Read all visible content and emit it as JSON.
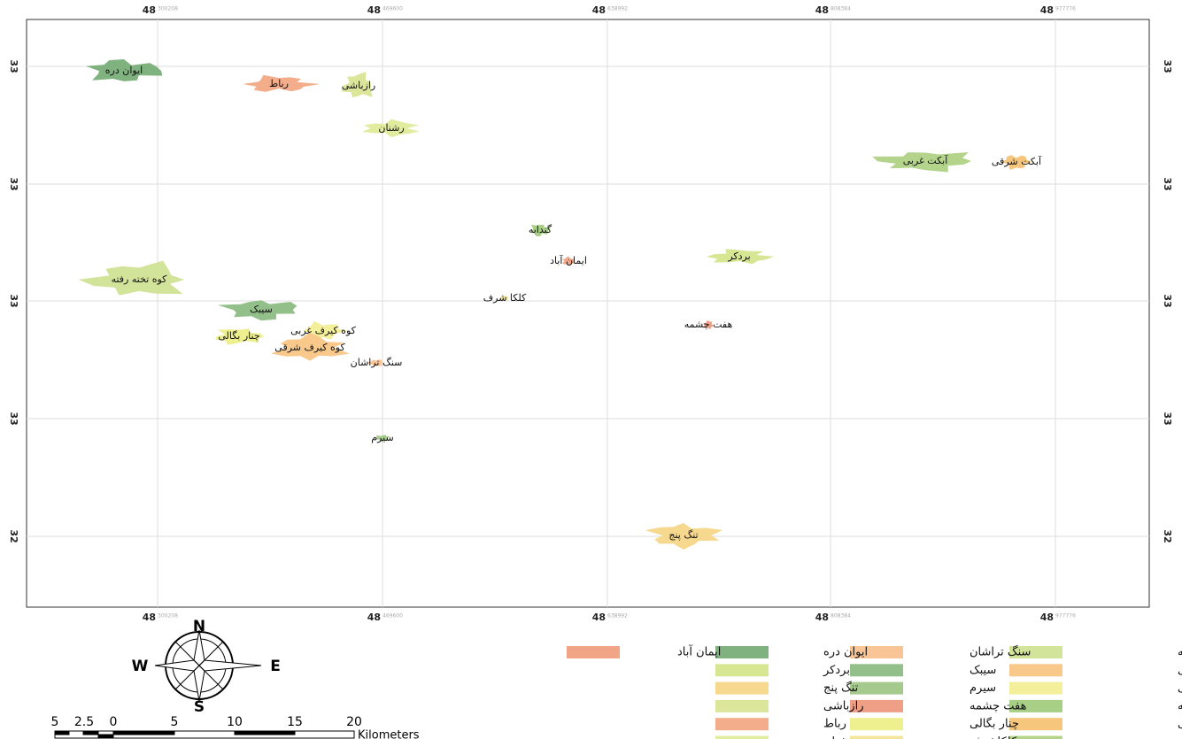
{
  "map": {
    "top_ticks": [
      {
        "major": "48",
        "minor": "300208"
      },
      {
        "major": "48",
        "minor": "469600"
      },
      {
        "major": "48",
        "minor": "638992"
      },
      {
        "major": "48",
        "minor": "808384"
      },
      {
        "major": "48",
        "minor": "977776"
      }
    ],
    "bottom_ticks": [
      {
        "major": "48",
        "minor": "300208"
      },
      {
        "major": "48",
        "minor": "469600"
      },
      {
        "major": "48",
        "minor": "638992"
      },
      {
        "major": "48",
        "minor": "808384"
      },
      {
        "major": "48",
        "minor": "977776"
      }
    ],
    "left_ticks": [
      "33",
      "33",
      "33",
      "33",
      "32"
    ],
    "right_ticks": [
      "33",
      "33",
      "33",
      "33",
      "32"
    ],
    "regions": [
      {
        "label": "ایوان دره",
        "color": "#7fb27f"
      },
      {
        "label": "رباط",
        "color": "#f4ad8a"
      },
      {
        "label": "رازباشی",
        "color": "#dbe69a"
      },
      {
        "label": "رشنان",
        "color": "#e2ec9e"
      },
      {
        "label": "آبکت غربی",
        "color": "#b3d48a"
      },
      {
        "label": "آبکت شرقی",
        "color": "#f7c67d"
      },
      {
        "label": "گندابه",
        "color": "#a8cf86"
      },
      {
        "label": "ایمان آباد",
        "color": "#f2a586"
      },
      {
        "label": "بردکر",
        "color": "#d6e693"
      },
      {
        "label": "کوه تخته رفته",
        "color": "#d2e39a"
      },
      {
        "label": "کلکا شرف",
        "color": "#f5e59a"
      },
      {
        "label": "سیبک",
        "color": "#93c08a"
      },
      {
        "label": "کوه کیرف غربی",
        "color": "#f4ef9a"
      },
      {
        "label": "چنار بگالی",
        "color": "#eef08f"
      },
      {
        "label": "کوه کیرف شرقی",
        "color": "#f9c98c"
      },
      {
        "label": "هفت چشمه",
        "color": "#ef9f86"
      },
      {
        "label": "سنگ تراشان",
        "color": "#f9c496"
      },
      {
        "label": "سیرم",
        "color": "#a6c98e"
      },
      {
        "label": "تنگ پنج",
        "color": "#f6d88e"
      }
    ],
    "legend": [
      {
        "label": "کوه تخته رفته",
        "color": "#d2e39a"
      },
      {
        "label": "کوه کیرف شرقی",
        "color": "#f9c98c"
      },
      {
        "label": "کوه کیرف غربی",
        "color": "#f4ef9a"
      },
      {
        "label": "گندابه",
        "color": "#a8cf86"
      },
      {
        "label": "آبکت شرقی",
        "color": "#f7c67d"
      },
      {
        "label": "آبکت غربی",
        "color": "#b3d48a"
      },
      {
        "label": "سنگ تراشان",
        "color": "#f9c496"
      },
      {
        "label": "سیبک",
        "color": "#93c08a"
      },
      {
        "label": "سیرم",
        "color": "#a6c98e"
      },
      {
        "label": "هفت چشمه",
        "color": "#ef9f86"
      },
      {
        "label": "چنار بگالی",
        "color": "#eef08f"
      },
      {
        "label": "کلکاشرف",
        "color": "#f5e59a"
      },
      {
        "label": "ایوان دره",
        "color": "#7fb27f"
      },
      {
        "label": "بردکر",
        "color": "#d6e693"
      },
      {
        "label": "تنگ پنج",
        "color": "#f6d88e"
      },
      {
        "label": "رازباشی",
        "color": "#dbe69a"
      },
      {
        "label": "رباط",
        "color": "#f4ad8a"
      },
      {
        "label": "رشنان",
        "color": "#e2ec9e"
      },
      {
        "label": "ایمان آباد",
        "color": "#f2a586"
      }
    ],
    "scale_bar": {
      "labels": [
        "5",
        "2.5",
        "0",
        "5",
        "10",
        "15",
        "20"
      ],
      "unit": "Kilometers"
    },
    "compass": {
      "north": "N",
      "west": "W",
      "east": "E",
      "south": "S"
    }
  }
}
